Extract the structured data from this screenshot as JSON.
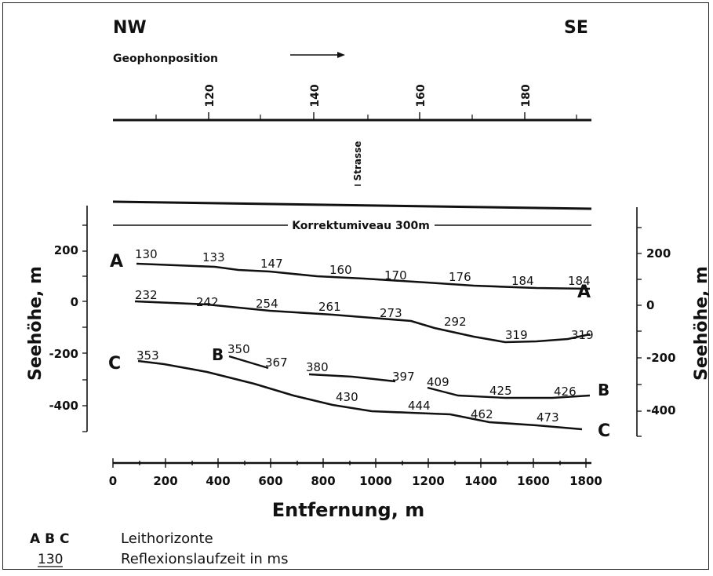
{
  "header": {
    "left": "NW",
    "right": "SE"
  },
  "geophone": {
    "label": "Geophonposition",
    "ticks": [
      "120",
      "140",
      "160",
      "180"
    ]
  },
  "road_label": "Strasse",
  "datum_label": "Korrektumiveau 300m",
  "y_axis": {
    "label": "Seehöhe, m",
    "ticks": [
      "200",
      "0",
      "-200",
      "-400"
    ]
  },
  "x_axis": {
    "label": "Entfernung, m",
    "ticks": [
      "0",
      "200",
      "400",
      "600",
      "800",
      "1000",
      "1200",
      "1400",
      "1600",
      "1800"
    ]
  },
  "horizons": {
    "A": {
      "name": "A",
      "times": [
        "130",
        "133",
        "147",
        "160",
        "170",
        "176",
        "184",
        "184"
      ]
    },
    "unnamed": {
      "times": [
        "232",
        "242",
        "254",
        "261",
        "273",
        "292",
        "319",
        "319"
      ]
    },
    "B": {
      "name": "B",
      "times": [
        "350",
        "367",
        "380",
        "397",
        "409",
        "425",
        "426"
      ]
    },
    "C": {
      "name": "C",
      "times": [
        "353",
        "430",
        "444",
        "462",
        "473"
      ]
    }
  },
  "legend": [
    {
      "symbol": "A B C",
      "text": "Leithorizonte"
    },
    {
      "symbol": "130",
      "text": "Reflexionslaufzeit in ms"
    }
  ]
}
